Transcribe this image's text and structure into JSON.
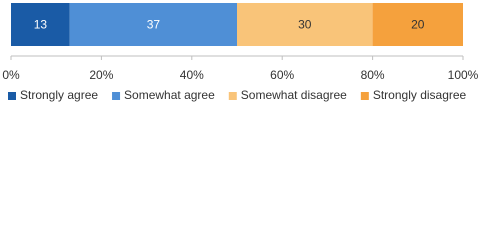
{
  "chart_data": {
    "type": "stacked-bar",
    "orientation": "horizontal",
    "categories": [
      null
    ],
    "series": [
      {
        "name": "Strongly agree",
        "color": "#1a5ba6",
        "label_color": "#ffffff",
        "values": [
          13
        ]
      },
      {
        "name": "Somewhat agree",
        "color": "#4f8fd6",
        "label_color": "#ffffff",
        "values": [
          37
        ]
      },
      {
        "name": "Somewhat disagree",
        "color": "#f9c479",
        "label_color": "#333333",
        "values": [
          30
        ]
      },
      {
        "name": "Strongly disagree",
        "color": "#f5a13d",
        "label_color": "#333333",
        "values": [
          20
        ]
      }
    ],
    "xlim": [
      0,
      100
    ],
    "xticks": [
      {
        "value": 0,
        "label": "0%"
      },
      {
        "value": 20,
        "label": "20%"
      },
      {
        "value": 40,
        "label": "40%"
      },
      {
        "value": 60,
        "label": "60%"
      },
      {
        "value": 80,
        "label": "80%"
      },
      {
        "value": 100,
        "label": "100%"
      }
    ],
    "legend": "bottom"
  }
}
